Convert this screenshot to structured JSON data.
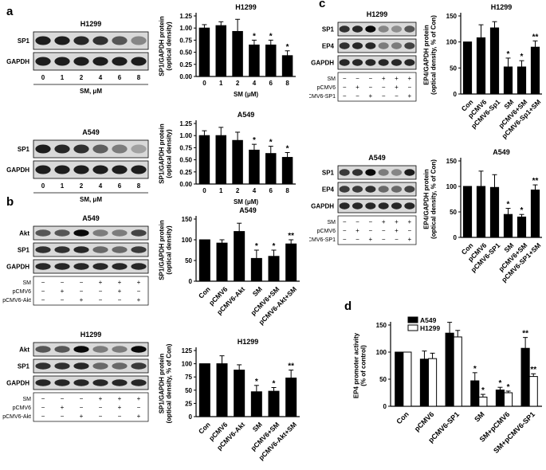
{
  "panels": {
    "a": "a",
    "b": "b",
    "c": "c",
    "d": "d"
  },
  "blots": [
    {
      "id": "a1",
      "title": "H1299",
      "rows": [
        "SP1",
        "GAPDH"
      ],
      "lanes": [
        "0",
        "1",
        "2",
        "4",
        "6",
        "8"
      ],
      "footer": "SM, μM",
      "bands": [
        [
          0.9,
          0.9,
          0.85,
          0.8,
          0.6,
          0.35
        ],
        [
          0.9,
          0.9,
          0.9,
          0.9,
          0.9,
          0.9
        ]
      ]
    },
    {
      "id": "a2",
      "title": "A549",
      "rows": [
        "SP1",
        "GAPDH"
      ],
      "lanes": [
        "0",
        "1",
        "2",
        "4",
        "6",
        "8"
      ],
      "footer": "SM, μM",
      "bands": [
        [
          0.9,
          0.85,
          0.8,
          0.55,
          0.4,
          0.2
        ],
        [
          0.9,
          0.9,
          0.9,
          0.9,
          0.9,
          0.9
        ]
      ]
    },
    {
      "id": "b1",
      "title": "A549",
      "rows": [
        "Akt",
        "SP1",
        "GAPDH"
      ],
      "lanes": [
        "",
        "",
        "",
        "",
        "",
        ""
      ],
      "treat_rows": [
        {
          "label": "SM",
          "marks": [
            "−",
            "−",
            "−",
            "+",
            "+",
            "+"
          ]
        },
        {
          "label": "pCMV6",
          "marks": [
            "−",
            "+",
            "−",
            "−",
            "+",
            "−"
          ]
        },
        {
          "label": "pCMV6-Akt",
          "marks": [
            "−",
            "−",
            "+",
            "−",
            "−",
            "+"
          ]
        }
      ],
      "bands": [
        [
          0.6,
          0.6,
          1.0,
          0.4,
          0.4,
          0.7
        ],
        [
          0.8,
          0.8,
          0.85,
          0.5,
          0.5,
          0.75
        ],
        [
          0.85,
          0.85,
          0.85,
          0.85,
          0.85,
          0.85
        ]
      ]
    },
    {
      "id": "b2",
      "title": "H1299",
      "rows": [
        "Akt",
        "SP1",
        "GAPDH"
      ],
      "lanes": [
        "",
        "",
        "",
        "",
        "",
        ""
      ],
      "treat_rows": [
        {
          "label": "SM",
          "marks": [
            "−",
            "−",
            "−",
            "+",
            "+",
            "+"
          ]
        },
        {
          "label": "pCMV6",
          "marks": [
            "−",
            "+",
            "−",
            "−",
            "+",
            "−"
          ]
        },
        {
          "label": "pCMV6-Akt",
          "marks": [
            "−",
            "−",
            "+",
            "−",
            "−",
            "+"
          ]
        }
      ],
      "bands": [
        [
          0.6,
          0.6,
          1.0,
          0.4,
          0.4,
          1.0
        ],
        [
          0.8,
          0.8,
          0.85,
          0.5,
          0.5,
          0.75
        ],
        [
          0.85,
          0.85,
          0.85,
          0.85,
          0.85,
          0.85
        ]
      ]
    },
    {
      "id": "c1",
      "title": "H1299",
      "rows": [
        "SP1",
        "EP4",
        "GAPDH"
      ],
      "lanes": [
        "",
        "",
        "",
        "",
        "",
        ""
      ],
      "treat_rows": [
        {
          "label": "SM",
          "marks": [
            "−",
            "−",
            "−",
            "+",
            "+",
            "+"
          ]
        },
        {
          "label": "pCMV6",
          "marks": [
            "−",
            "+",
            "−",
            "−",
            "+",
            "−"
          ]
        },
        {
          "label": "pCMV6-SP1",
          "marks": [
            "−",
            "−",
            "+",
            "−",
            "−",
            "+"
          ]
        }
      ],
      "bands": [
        [
          0.8,
          0.85,
          1.0,
          0.35,
          0.3,
          0.6
        ],
        [
          0.8,
          0.85,
          0.85,
          0.4,
          0.4,
          0.7
        ],
        [
          0.85,
          0.85,
          0.85,
          0.85,
          0.85,
          0.85
        ]
      ]
    },
    {
      "id": "c2",
      "title": "A549",
      "rows": [
        "SP1",
        "EP4",
        "GAPDH"
      ],
      "lanes": [
        "",
        "",
        "",
        "",
        "",
        ""
      ],
      "treat_rows": [
        {
          "label": "SM",
          "marks": [
            "−",
            "−",
            "−",
            "+",
            "+",
            "+"
          ]
        },
        {
          "label": "pCMV6",
          "marks": [
            "−",
            "+",
            "−",
            "−",
            "+",
            "−"
          ]
        },
        {
          "label": "pCMV6-SP1",
          "marks": [
            "−",
            "−",
            "+",
            "−",
            "−",
            "+"
          ]
        }
      ],
      "bands": [
        [
          0.75,
          0.8,
          1.0,
          0.4,
          0.35,
          0.9
        ],
        [
          0.75,
          0.75,
          0.8,
          0.5,
          0.5,
          0.7
        ],
        [
          0.85,
          0.85,
          0.85,
          0.85,
          0.85,
          0.85
        ]
      ]
    }
  ],
  "chart_data": [
    {
      "id": "a1",
      "type": "bar",
      "title": "H1299",
      "ylabel": [
        "SP1/GAPDH protein",
        "(optical density)"
      ],
      "xlabel": "SM (μM)",
      "categories": [
        "0",
        "1",
        "2",
        "4",
        "6",
        "8"
      ],
      "values": [
        1.0,
        1.05,
        0.93,
        0.65,
        0.65,
        0.43
      ],
      "errors": [
        0.07,
        0.08,
        0.25,
        0.1,
        0.1,
        0.1
      ],
      "sig": [
        "",
        "",
        "",
        "*",
        "*",
        "*"
      ],
      "ylim": [
        0,
        1.25
      ],
      "yticks": [
        "0.00",
        "0.25",
        "0.50",
        "0.75",
        "1.00",
        "1.25"
      ],
      "rotate": false
    },
    {
      "id": "a2",
      "type": "bar",
      "title": "A549",
      "ylabel": [
        "SP1/GAPDH protein",
        "(optical density)"
      ],
      "xlabel": "SM (μM)",
      "categories": [
        "0",
        "1",
        "2",
        "4",
        "6",
        "8"
      ],
      "values": [
        1.0,
        1.0,
        0.9,
        0.7,
        0.63,
        0.55
      ],
      "errors": [
        0.1,
        0.17,
        0.17,
        0.12,
        0.15,
        0.1
      ],
      "sig": [
        "",
        "",
        "",
        "*",
        "*",
        "*"
      ],
      "ylim": [
        0,
        1.25
      ],
      "yticks": [
        "0.00",
        "0.25",
        "0.50",
        "0.75",
        "1.00",
        "1.25"
      ],
      "rotate": false
    },
    {
      "id": "b1",
      "type": "bar",
      "title": "A549",
      "ylabel": [
        "SP1/GAPDH protein",
        "(optical density)"
      ],
      "xlabel": "",
      "categories": [
        "Con",
        "pCMV6",
        "pCMV6-Akt",
        "SM",
        "pCMV6+SM",
        "pCMV6-Akt+SM"
      ],
      "values": [
        100,
        92,
        120,
        55,
        60,
        90
      ],
      "errors": [
        0,
        8,
        20,
        20,
        15,
        10
      ],
      "sig": [
        "",
        "",
        "",
        "*",
        "*",
        "**"
      ],
      "ylim": [
        0,
        150
      ],
      "yticks": [
        "0",
        "50",
        "100",
        "150"
      ],
      "rotate": true
    },
    {
      "id": "b2",
      "type": "bar",
      "title": "H1299",
      "ylabel": [
        "SP1/GAPDH protein",
        "(optical density, % of Con)"
      ],
      "xlabel": "",
      "categories": [
        "Con",
        "pCMV6",
        "pCMV6-Akt",
        "SM",
        "pCMV6+SM",
        "pCMV6-Akt+SM"
      ],
      "values": [
        100,
        100,
        88,
        47,
        48,
        73
      ],
      "errors": [
        0,
        15,
        10,
        12,
        7,
        15
      ],
      "sig": [
        "",
        "",
        "",
        "*",
        "*",
        "**"
      ],
      "ylim": [
        0,
        125
      ],
      "yticks": [
        "0",
        "25",
        "50",
        "75",
        "100",
        "125"
      ],
      "rotate": true
    },
    {
      "id": "c1",
      "type": "bar",
      "title": "H1299",
      "ylabel": [
        "EP4/GAPDH protein",
        "(optical density, % of Con)"
      ],
      "xlabel": "",
      "categories": [
        "Con",
        "pCMV6",
        "pCMV6-Sp1",
        "SM",
        "pCMV6+SM",
        "pCMV6-Sp1+SM"
      ],
      "values": [
        100,
        108,
        127,
        52,
        52,
        90
      ],
      "errors": [
        0,
        25,
        12,
        17,
        12,
        12
      ],
      "sig": [
        "",
        "",
        "",
        "*",
        "*",
        "**"
      ],
      "ylim": [
        0,
        150
      ],
      "yticks": [
        "0",
        "50",
        "100",
        "150"
      ],
      "rotate": true
    },
    {
      "id": "c2",
      "type": "bar",
      "title": "A549",
      "ylabel": [
        "EP4/GAPDH protein",
        "(optical density, % of Con)"
      ],
      "xlabel": "",
      "categories": [
        "Con",
        "pCMV6",
        "pCMV6-SP1",
        "SM",
        "pCMV6+SM",
        "pCMV6-SP1+SM"
      ],
      "values": [
        100,
        100,
        98,
        45,
        40,
        93
      ],
      "errors": [
        0,
        30,
        25,
        12,
        5,
        10
      ],
      "sig": [
        "",
        "",
        "",
        "*",
        "*",
        "**"
      ],
      "ylim": [
        0,
        150
      ],
      "yticks": [
        "0",
        "50",
        "100",
        "150"
      ],
      "rotate": true
    },
    {
      "id": "d",
      "type": "bar",
      "title": "",
      "ylabel": [
        "EP4 promoter activity",
        "(% of control)"
      ],
      "xlabel": "",
      "categories": [
        "Con",
        "pCMV6",
        "pCMV6-SP1",
        "SM",
        "SM+pCMV6",
        "SM+pCMV6-SP1"
      ],
      "series": [
        {
          "name": "A549",
          "values": [
            100,
            87,
            135,
            47,
            30,
            107
          ],
          "errors": [
            0,
            15,
            20,
            15,
            5,
            20
          ],
          "sig": [
            "",
            "",
            "",
            "*",
            "*",
            "**"
          ]
        },
        {
          "name": "H1299",
          "values": [
            100,
            88,
            128,
            17,
            25,
            55
          ],
          "errors": [
            0,
            10,
            12,
            5,
            3,
            5
          ],
          "sig": [
            "",
            "",
            "",
            "*",
            "*",
            "**"
          ]
        }
      ],
      "ylim": [
        0,
        150
      ],
      "yticks": [
        "0",
        "50",
        "100",
        "150"
      ],
      "rotate": true,
      "legend": "top-right",
      "colors": [
        "#000000",
        "#ffffff"
      ]
    }
  ]
}
